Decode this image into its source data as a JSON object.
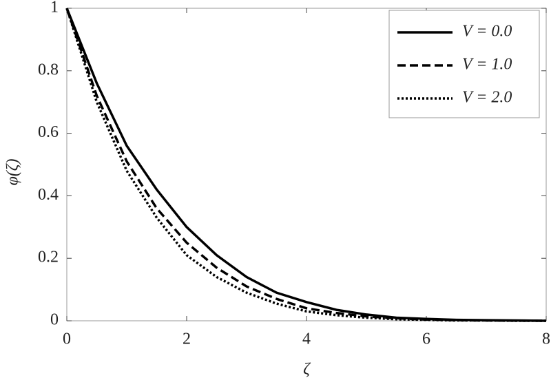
{
  "chart_data": {
    "type": "line",
    "xlabel": "ζ",
    "ylabel": "φ(ζ)",
    "x": [
      0,
      0.5,
      1,
      1.5,
      2,
      2.5,
      3,
      3.5,
      4,
      4.5,
      5,
      5.5,
      6,
      6.5,
      7,
      7.5,
      8
    ],
    "series": [
      {
        "name": "V = 0.0",
        "color": "#000000",
        "linestyle": "solid",
        "values": [
          1,
          0.76,
          0.56,
          0.42,
          0.3,
          0.21,
          0.14,
          0.09,
          0.06,
          0.035,
          0.02,
          0.01,
          0.006,
          0.003,
          0.002,
          0.001,
          0
        ]
      },
      {
        "name": "V = 1.0",
        "color": "#000000",
        "linestyle": "dashed",
        "values": [
          1,
          0.72,
          0.51,
          0.36,
          0.25,
          0.17,
          0.11,
          0.07,
          0.04,
          0.025,
          0.014,
          0.008,
          0.004,
          0.002,
          0.001,
          0.0005,
          0
        ]
      },
      {
        "name": "V = 2.0",
        "color": "#000000",
        "linestyle": "dotted",
        "values": [
          1,
          0.7,
          0.48,
          0.33,
          0.21,
          0.14,
          0.09,
          0.055,
          0.03,
          0.018,
          0.01,
          0.005,
          0.003,
          0.001,
          0.001,
          0,
          0
        ]
      }
    ],
    "xlim": [
      0,
      8
    ],
    "xticks": [
      0,
      2,
      4,
      6,
      8
    ],
    "ylim": [
      0,
      1
    ],
    "yticks": [
      0,
      0.2,
      0.4,
      0.6,
      0.8,
      1
    ],
    "grid": false,
    "legend": "upper right"
  }
}
